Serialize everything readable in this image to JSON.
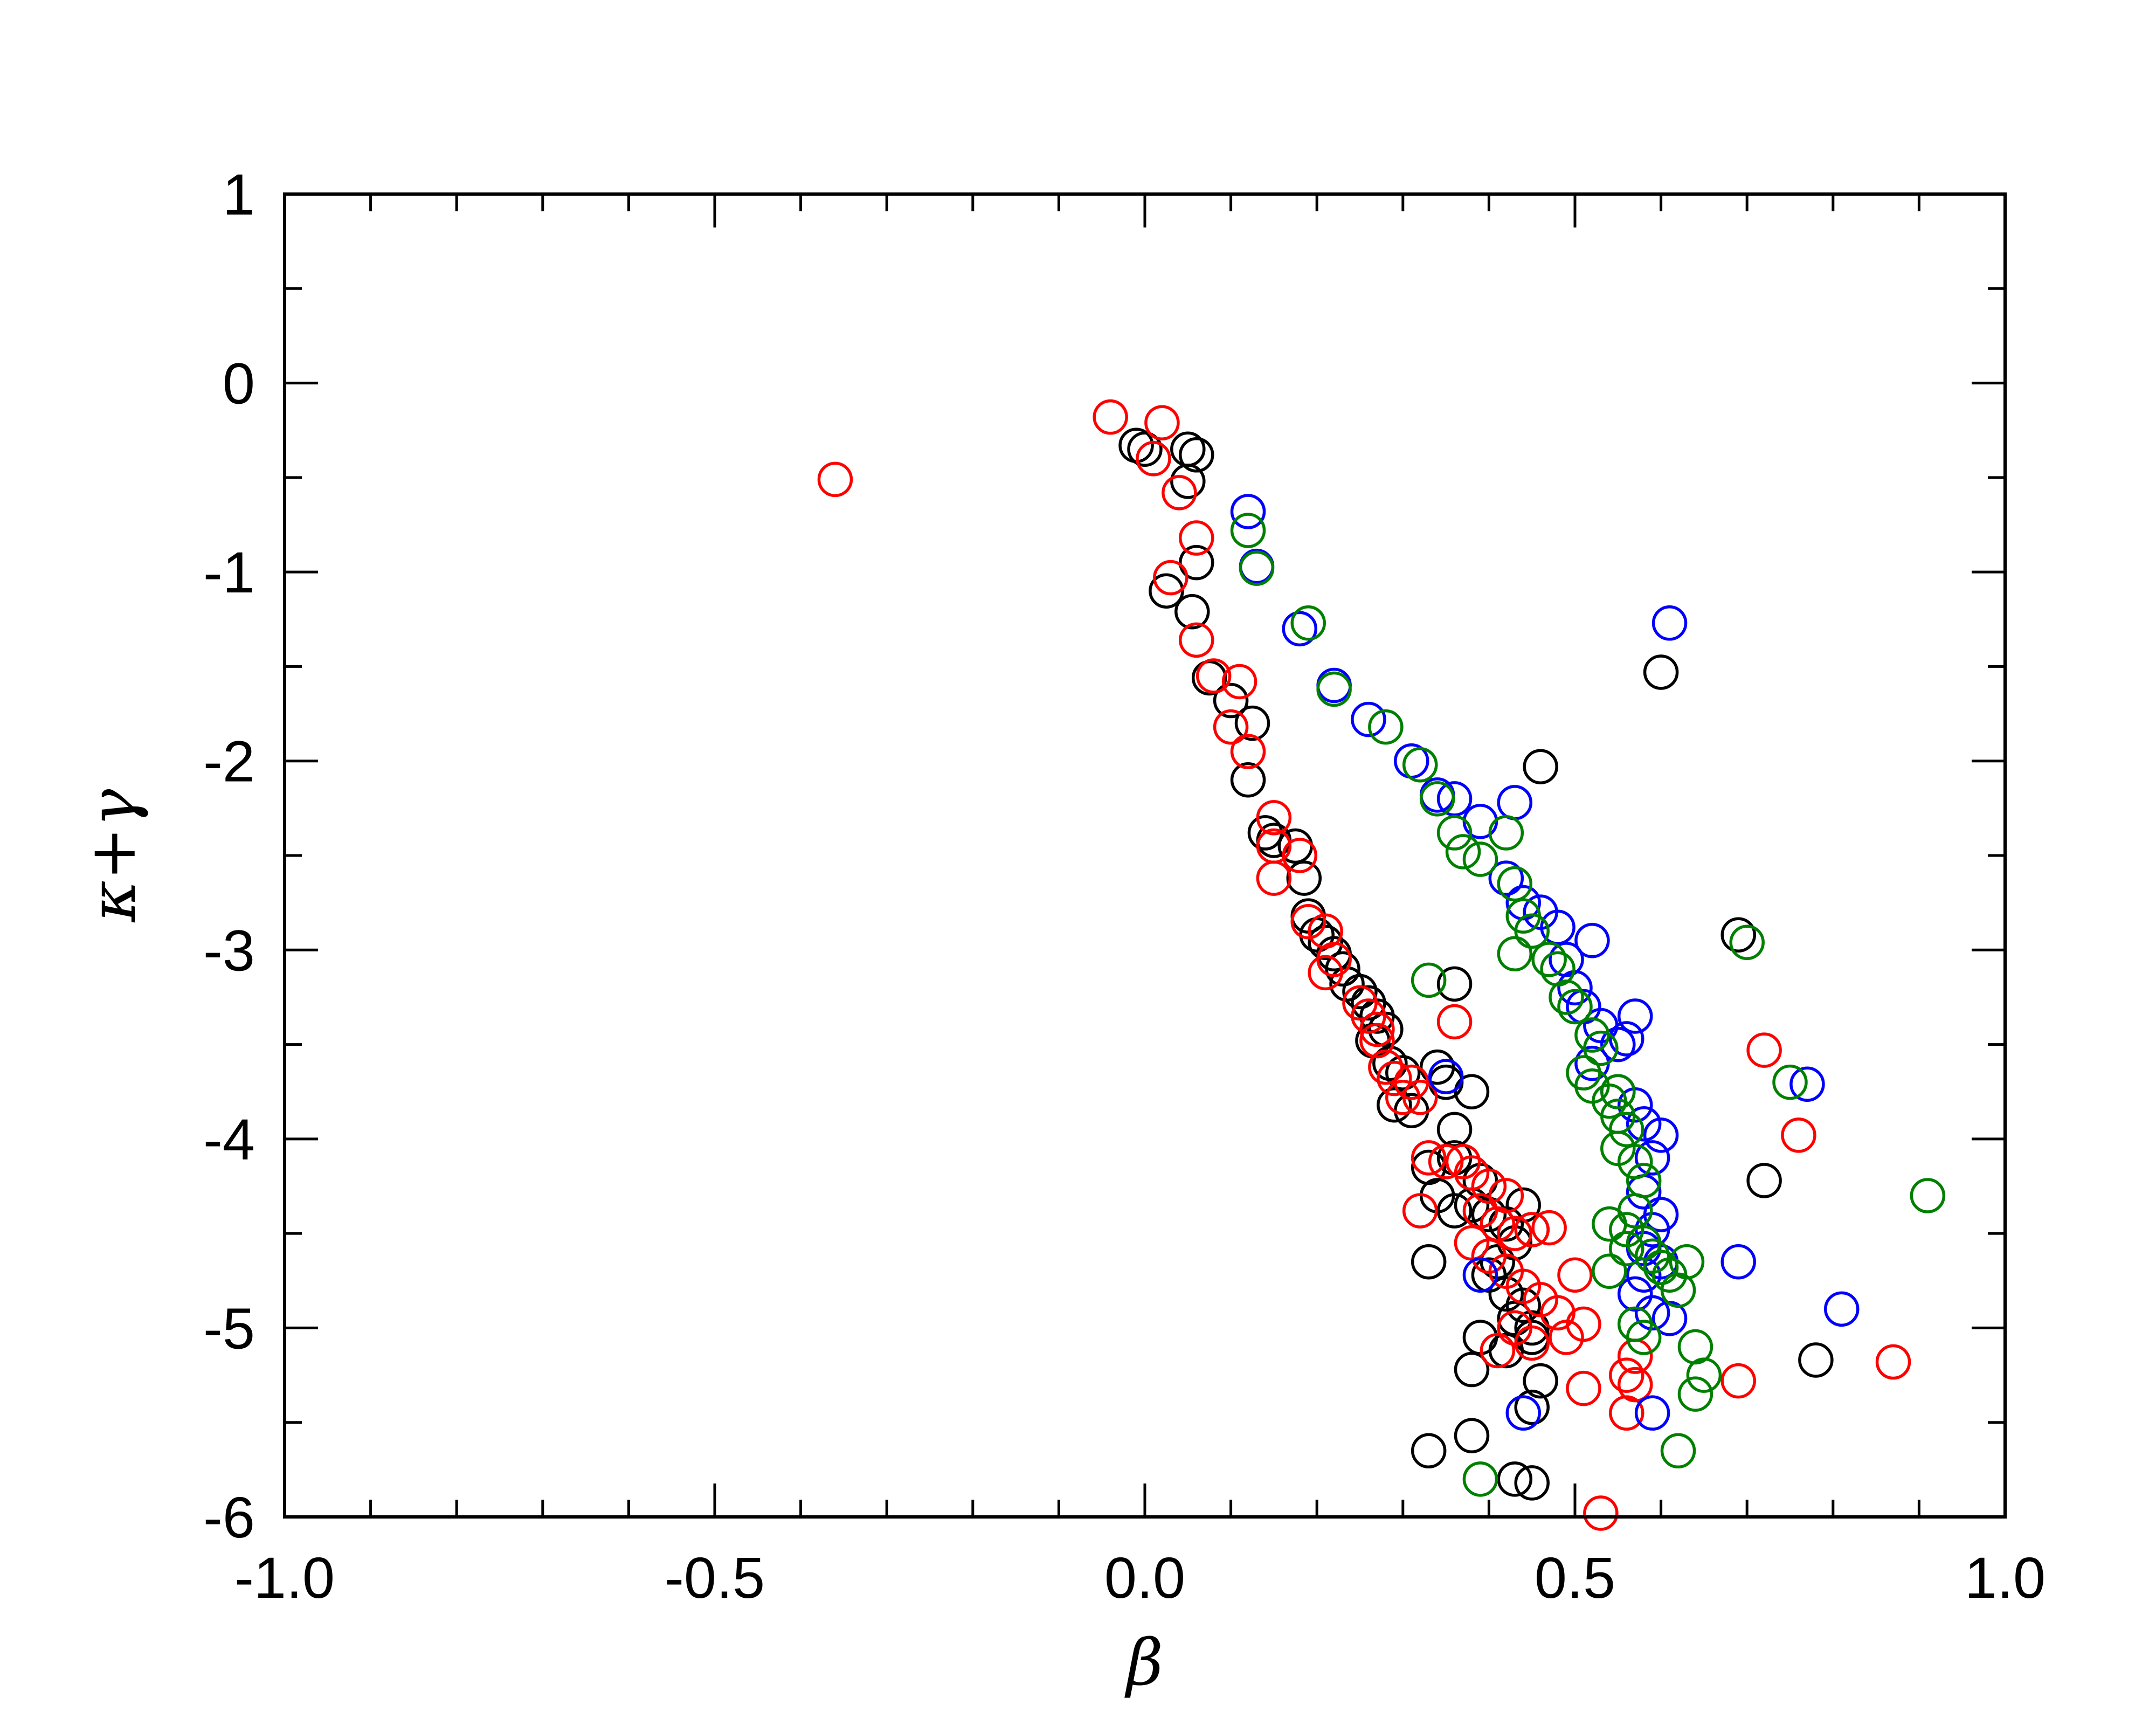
{
  "chart_data": {
    "type": "scatter",
    "title": "",
    "xlabel": "β",
    "ylabel": "κ+γ",
    "xlim": [
      -1.0,
      1.0
    ],
    "ylim": [
      -6,
      1
    ],
    "grid": false,
    "marker": "open-circle",
    "x_ticks": [
      "-1.0",
      "-0.5",
      "0.0",
      "0.5",
      "1.0"
    ],
    "y_ticks": [
      "-6",
      "-5",
      "-4",
      "-3",
      "-2",
      "-1",
      "0",
      "1"
    ],
    "series": [
      {
        "color": "#000000",
        "points": [
          [
            -0.01,
            -0.33
          ],
          [
            0.0,
            -0.35
          ],
          [
            0.05,
            -0.35
          ],
          [
            0.06,
            -0.38
          ],
          [
            0.05,
            -0.52
          ],
          [
            0.025,
            -1.1
          ],
          [
            0.06,
            -0.95
          ],
          [
            0.055,
            -1.21
          ],
          [
            0.075,
            -1.56
          ],
          [
            0.1,
            -1.68
          ],
          [
            0.125,
            -1.8
          ],
          [
            0.12,
            -2.1
          ],
          [
            0.14,
            -2.38
          ],
          [
            0.15,
            -2.42
          ],
          [
            0.175,
            -2.45
          ],
          [
            0.185,
            -2.62
          ],
          [
            0.19,
            -2.82
          ],
          [
            0.2,
            -2.92
          ],
          [
            0.21,
            -2.96
          ],
          [
            0.22,
            -3.02
          ],
          [
            0.23,
            -3.1
          ],
          [
            0.235,
            -3.18
          ],
          [
            0.25,
            -3.22
          ],
          [
            0.26,
            -3.28
          ],
          [
            0.27,
            -3.35
          ],
          [
            0.28,
            -3.42
          ],
          [
            0.265,
            -3.48
          ],
          [
            0.285,
            -3.6
          ],
          [
            0.3,
            -3.65
          ],
          [
            0.29,
            -3.82
          ],
          [
            0.31,
            -3.85
          ],
          [
            0.34,
            -3.62
          ],
          [
            0.35,
            -3.7
          ],
          [
            0.36,
            -3.95
          ],
          [
            0.36,
            -4.1
          ],
          [
            0.33,
            -4.15
          ],
          [
            0.34,
            -4.3
          ],
          [
            0.36,
            -4.38
          ],
          [
            0.38,
            -4.35
          ],
          [
            0.39,
            -4.22
          ],
          [
            0.4,
            -4.4
          ],
          [
            0.42,
            -4.45
          ],
          [
            0.44,
            -4.35
          ],
          [
            0.45,
            -4.48
          ],
          [
            0.43,
            -4.55
          ],
          [
            0.41,
            -4.65
          ],
          [
            0.4,
            -4.72
          ],
          [
            0.42,
            -4.82
          ],
          [
            0.44,
            -4.88
          ],
          [
            0.43,
            -4.95
          ],
          [
            0.45,
            -5.0
          ],
          [
            0.45,
            -5.05
          ],
          [
            0.39,
            -5.05
          ],
          [
            0.42,
            -5.12
          ],
          [
            0.38,
            -5.22
          ],
          [
            0.46,
            -5.28
          ],
          [
            0.45,
            -5.42
          ],
          [
            0.33,
            -4.65
          ],
          [
            0.36,
            -3.18
          ],
          [
            0.38,
            -3.75
          ],
          [
            0.46,
            -2.03
          ],
          [
            0.6,
            -1.53
          ],
          [
            0.69,
            -2.92
          ],
          [
            0.72,
            -4.22
          ],
          [
            0.78,
            -5.17
          ],
          [
            0.33,
            -5.65
          ],
          [
            0.38,
            -5.57
          ],
          [
            0.43,
            -5.8
          ],
          [
            0.45,
            -5.82
          ]
        ]
      },
      {
        "color": "#ff0000",
        "points": [
          [
            -0.36,
            -0.51
          ],
          [
            -0.04,
            -0.18
          ],
          [
            0.02,
            -0.21
          ],
          [
            0.01,
            -0.4
          ],
          [
            0.04,
            -0.58
          ],
          [
            0.06,
            -0.82
          ],
          [
            0.03,
            -1.03
          ],
          [
            0.06,
            -1.36
          ],
          [
            0.08,
            -1.55
          ],
          [
            0.11,
            -1.58
          ],
          [
            0.1,
            -1.82
          ],
          [
            0.12,
            -1.95
          ],
          [
            0.15,
            -2.3
          ],
          [
            0.15,
            -2.45
          ],
          [
            0.15,
            -2.62
          ],
          [
            0.18,
            -2.5
          ],
          [
            0.19,
            -2.85
          ],
          [
            0.21,
            -2.9
          ],
          [
            0.22,
            -3.05
          ],
          [
            0.21,
            -3.12
          ],
          [
            0.25,
            -3.28
          ],
          [
            0.26,
            -3.35
          ],
          [
            0.27,
            -3.42
          ],
          [
            0.27,
            -3.48
          ],
          [
            0.28,
            -3.62
          ],
          [
            0.29,
            -3.68
          ],
          [
            0.3,
            -3.78
          ],
          [
            0.31,
            -3.7
          ],
          [
            0.32,
            -3.78
          ],
          [
            0.36,
            -3.38
          ],
          [
            0.33,
            -4.1
          ],
          [
            0.35,
            -4.12
          ],
          [
            0.37,
            -4.12
          ],
          [
            0.38,
            -4.18
          ],
          [
            0.4,
            -4.25
          ],
          [
            0.42,
            -4.3
          ],
          [
            0.39,
            -4.38
          ],
          [
            0.41,
            -4.45
          ],
          [
            0.43,
            -4.5
          ],
          [
            0.45,
            -4.48
          ],
          [
            0.47,
            -4.47
          ],
          [
            0.38,
            -4.55
          ],
          [
            0.4,
            -4.62
          ],
          [
            0.42,
            -4.7
          ],
          [
            0.44,
            -4.78
          ],
          [
            0.46,
            -4.85
          ],
          [
            0.48,
            -4.92
          ],
          [
            0.43,
            -5.0
          ],
          [
            0.45,
            -5.08
          ],
          [
            0.41,
            -5.12
          ],
          [
            0.49,
            -5.05
          ],
          [
            0.51,
            -4.98
          ],
          [
            0.5,
            -4.72
          ],
          [
            0.32,
            -4.38
          ],
          [
            0.51,
            -5.32
          ],
          [
            0.56,
            -5.25
          ],
          [
            0.57,
            -5.3
          ],
          [
            0.56,
            -5.45
          ],
          [
            0.57,
            -5.15
          ],
          [
            0.53,
            -5.98
          ],
          [
            0.72,
            -3.53
          ],
          [
            0.76,
            -3.98
          ],
          [
            0.69,
            -5.28
          ],
          [
            0.87,
            -5.18
          ]
        ]
      },
      {
        "color": "#0000ff",
        "points": [
          [
            0.12,
            -0.68
          ],
          [
            0.13,
            -0.97
          ],
          [
            0.18,
            -1.3
          ],
          [
            0.22,
            -1.6
          ],
          [
            0.26,
            -1.78
          ],
          [
            0.31,
            -2.0
          ],
          [
            0.34,
            -2.18
          ],
          [
            0.36,
            -2.2
          ],
          [
            0.39,
            -2.32
          ],
          [
            0.43,
            -2.22
          ],
          [
            0.42,
            -2.62
          ],
          [
            0.44,
            -2.75
          ],
          [
            0.46,
            -2.8
          ],
          [
            0.48,
            -2.88
          ],
          [
            0.49,
            -3.05
          ],
          [
            0.52,
            -2.95
          ],
          [
            0.5,
            -3.2
          ],
          [
            0.51,
            -3.3
          ],
          [
            0.53,
            -3.4
          ],
          [
            0.55,
            -3.5
          ],
          [
            0.56,
            -3.47
          ],
          [
            0.57,
            -3.35
          ],
          [
            0.52,
            -3.6
          ],
          [
            0.55,
            -3.75
          ],
          [
            0.57,
            -3.82
          ],
          [
            0.58,
            -3.92
          ],
          [
            0.6,
            -3.98
          ],
          [
            0.59,
            -4.1
          ],
          [
            0.58,
            -4.28
          ],
          [
            0.6,
            -4.4
          ],
          [
            0.59,
            -4.48
          ],
          [
            0.58,
            -4.58
          ],
          [
            0.6,
            -4.65
          ],
          [
            0.58,
            -4.72
          ],
          [
            0.57,
            -4.82
          ],
          [
            0.59,
            -4.92
          ],
          [
            0.61,
            -4.95
          ],
          [
            0.35,
            -3.67
          ],
          [
            0.39,
            -4.72
          ],
          [
            0.44,
            -5.45
          ],
          [
            0.59,
            -5.45
          ],
          [
            0.61,
            -1.27
          ],
          [
            0.69,
            -4.65
          ],
          [
            0.77,
            -3.71
          ],
          [
            0.81,
            -4.9
          ]
        ]
      },
      {
        "color": "#008000",
        "points": [
          [
            0.12,
            -0.78
          ],
          [
            0.13,
            -0.98
          ],
          [
            0.19,
            -1.27
          ],
          [
            0.22,
            -1.62
          ],
          [
            0.28,
            -1.82
          ],
          [
            0.32,
            -2.02
          ],
          [
            0.34,
            -2.2
          ],
          [
            0.36,
            -2.38
          ],
          [
            0.37,
            -2.48
          ],
          [
            0.39,
            -2.52
          ],
          [
            0.42,
            -2.38
          ],
          [
            0.43,
            -2.65
          ],
          [
            0.44,
            -2.82
          ],
          [
            0.45,
            -2.9
          ],
          [
            0.43,
            -3.02
          ],
          [
            0.47,
            -3.05
          ],
          [
            0.48,
            -3.1
          ],
          [
            0.49,
            -3.25
          ],
          [
            0.5,
            -3.3
          ],
          [
            0.52,
            -3.45
          ],
          [
            0.53,
            -3.52
          ],
          [
            0.51,
            -3.65
          ],
          [
            0.52,
            -3.72
          ],
          [
            0.54,
            -3.8
          ],
          [
            0.55,
            -3.88
          ],
          [
            0.56,
            -3.95
          ],
          [
            0.55,
            -4.05
          ],
          [
            0.57,
            -4.12
          ],
          [
            0.58,
            -4.22
          ],
          [
            0.57,
            -4.38
          ],
          [
            0.56,
            -4.48
          ],
          [
            0.58,
            -4.55
          ],
          [
            0.59,
            -4.62
          ],
          [
            0.6,
            -4.68
          ],
          [
            0.61,
            -4.72
          ],
          [
            0.62,
            -4.8
          ],
          [
            0.63,
            -4.65
          ],
          [
            0.54,
            -4.45
          ],
          [
            0.56,
            -4.58
          ],
          [
            0.57,
            -4.98
          ],
          [
            0.58,
            -5.05
          ],
          [
            0.64,
            -5.1
          ],
          [
            0.65,
            -5.25
          ],
          [
            0.64,
            -5.35
          ],
          [
            0.62,
            -5.65
          ],
          [
            0.39,
            -5.8
          ],
          [
            0.33,
            -3.16
          ],
          [
            0.7,
            -2.96
          ],
          [
            0.75,
            -3.7
          ],
          [
            0.91,
            -4.3
          ],
          [
            0.54,
            -4.7
          ],
          [
            0.55,
            -3.75
          ]
        ]
      }
    ]
  }
}
